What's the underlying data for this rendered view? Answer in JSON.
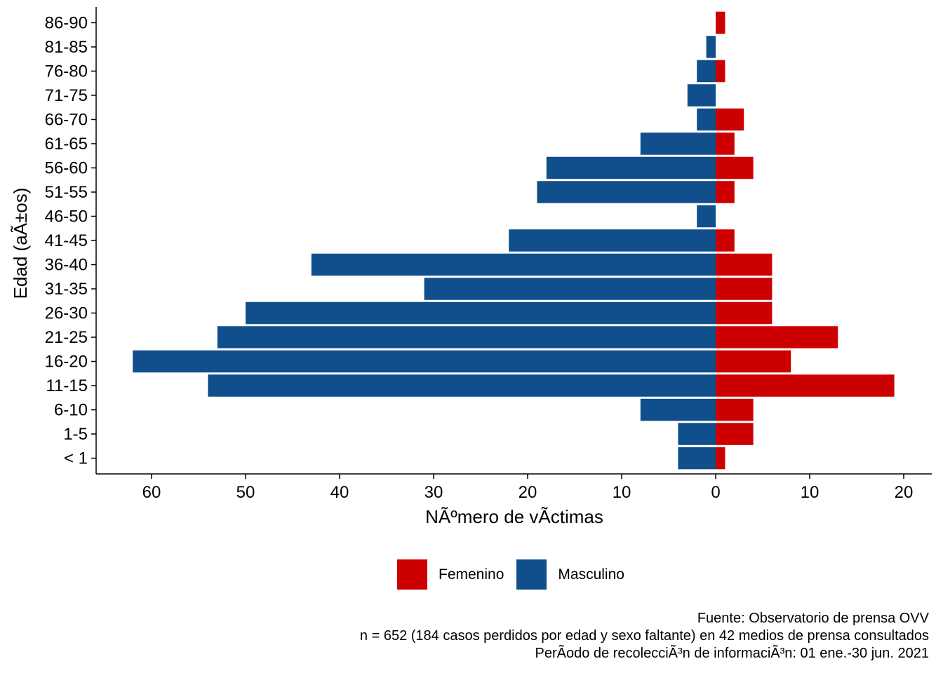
{
  "chart_data": {
    "type": "bar",
    "orientation": "horizontal-diverging",
    "categories": [
      "< 1",
      "1-5",
      "6-10",
      "11-15",
      "16-20",
      "21-25",
      "26-30",
      "31-35",
      "36-40",
      "41-45",
      "46-50",
      "51-55",
      "56-60",
      "61-65",
      "66-70",
      "71-75",
      "76-80",
      "81-85",
      "86-90"
    ],
    "series": [
      {
        "name": "Femenino",
        "color": "#cc0000",
        "direction": "right",
        "values": [
          1,
          4,
          4,
          19,
          8,
          13,
          6,
          6,
          6,
          2,
          0,
          2,
          4,
          2,
          3,
          0,
          1,
          0,
          1
        ]
      },
      {
        "name": "Masculino",
        "color": "#114f8c",
        "direction": "left",
        "values": [
          4,
          4,
          8,
          54,
          62,
          53,
          50,
          31,
          43,
          22,
          2,
          19,
          18,
          8,
          2,
          3,
          2,
          1,
          0
        ]
      }
    ],
    "xlabel": "NÃºmero de vÃ­ctimas",
    "ylabel": "Edad (aÃ±os)",
    "xticks": [
      -60,
      -50,
      -40,
      -30,
      -20,
      -10,
      0,
      10,
      20
    ],
    "xtick_labels": [
      "60",
      "50",
      "40",
      "30",
      "20",
      "10",
      "0",
      "10",
      "20"
    ],
    "xlim": [
      -66,
      23
    ],
    "grid": false,
    "legend_position": "bottom"
  },
  "legend": {
    "items": [
      {
        "label": "Femenino",
        "color": "#cc0000"
      },
      {
        "label": "Masculino",
        "color": "#114f8c"
      }
    ]
  },
  "caption": {
    "line1": "Fuente: Observatorio de prensa OVV",
    "line2": "n = 652 (184 casos perdidos por edad y sexo faltante) en 42 medios de prensa consultados",
    "line3": "PerÃ­odo de recolecciÃ³n de informaciÃ³n: 01 ene.-30 jun. 2021"
  }
}
